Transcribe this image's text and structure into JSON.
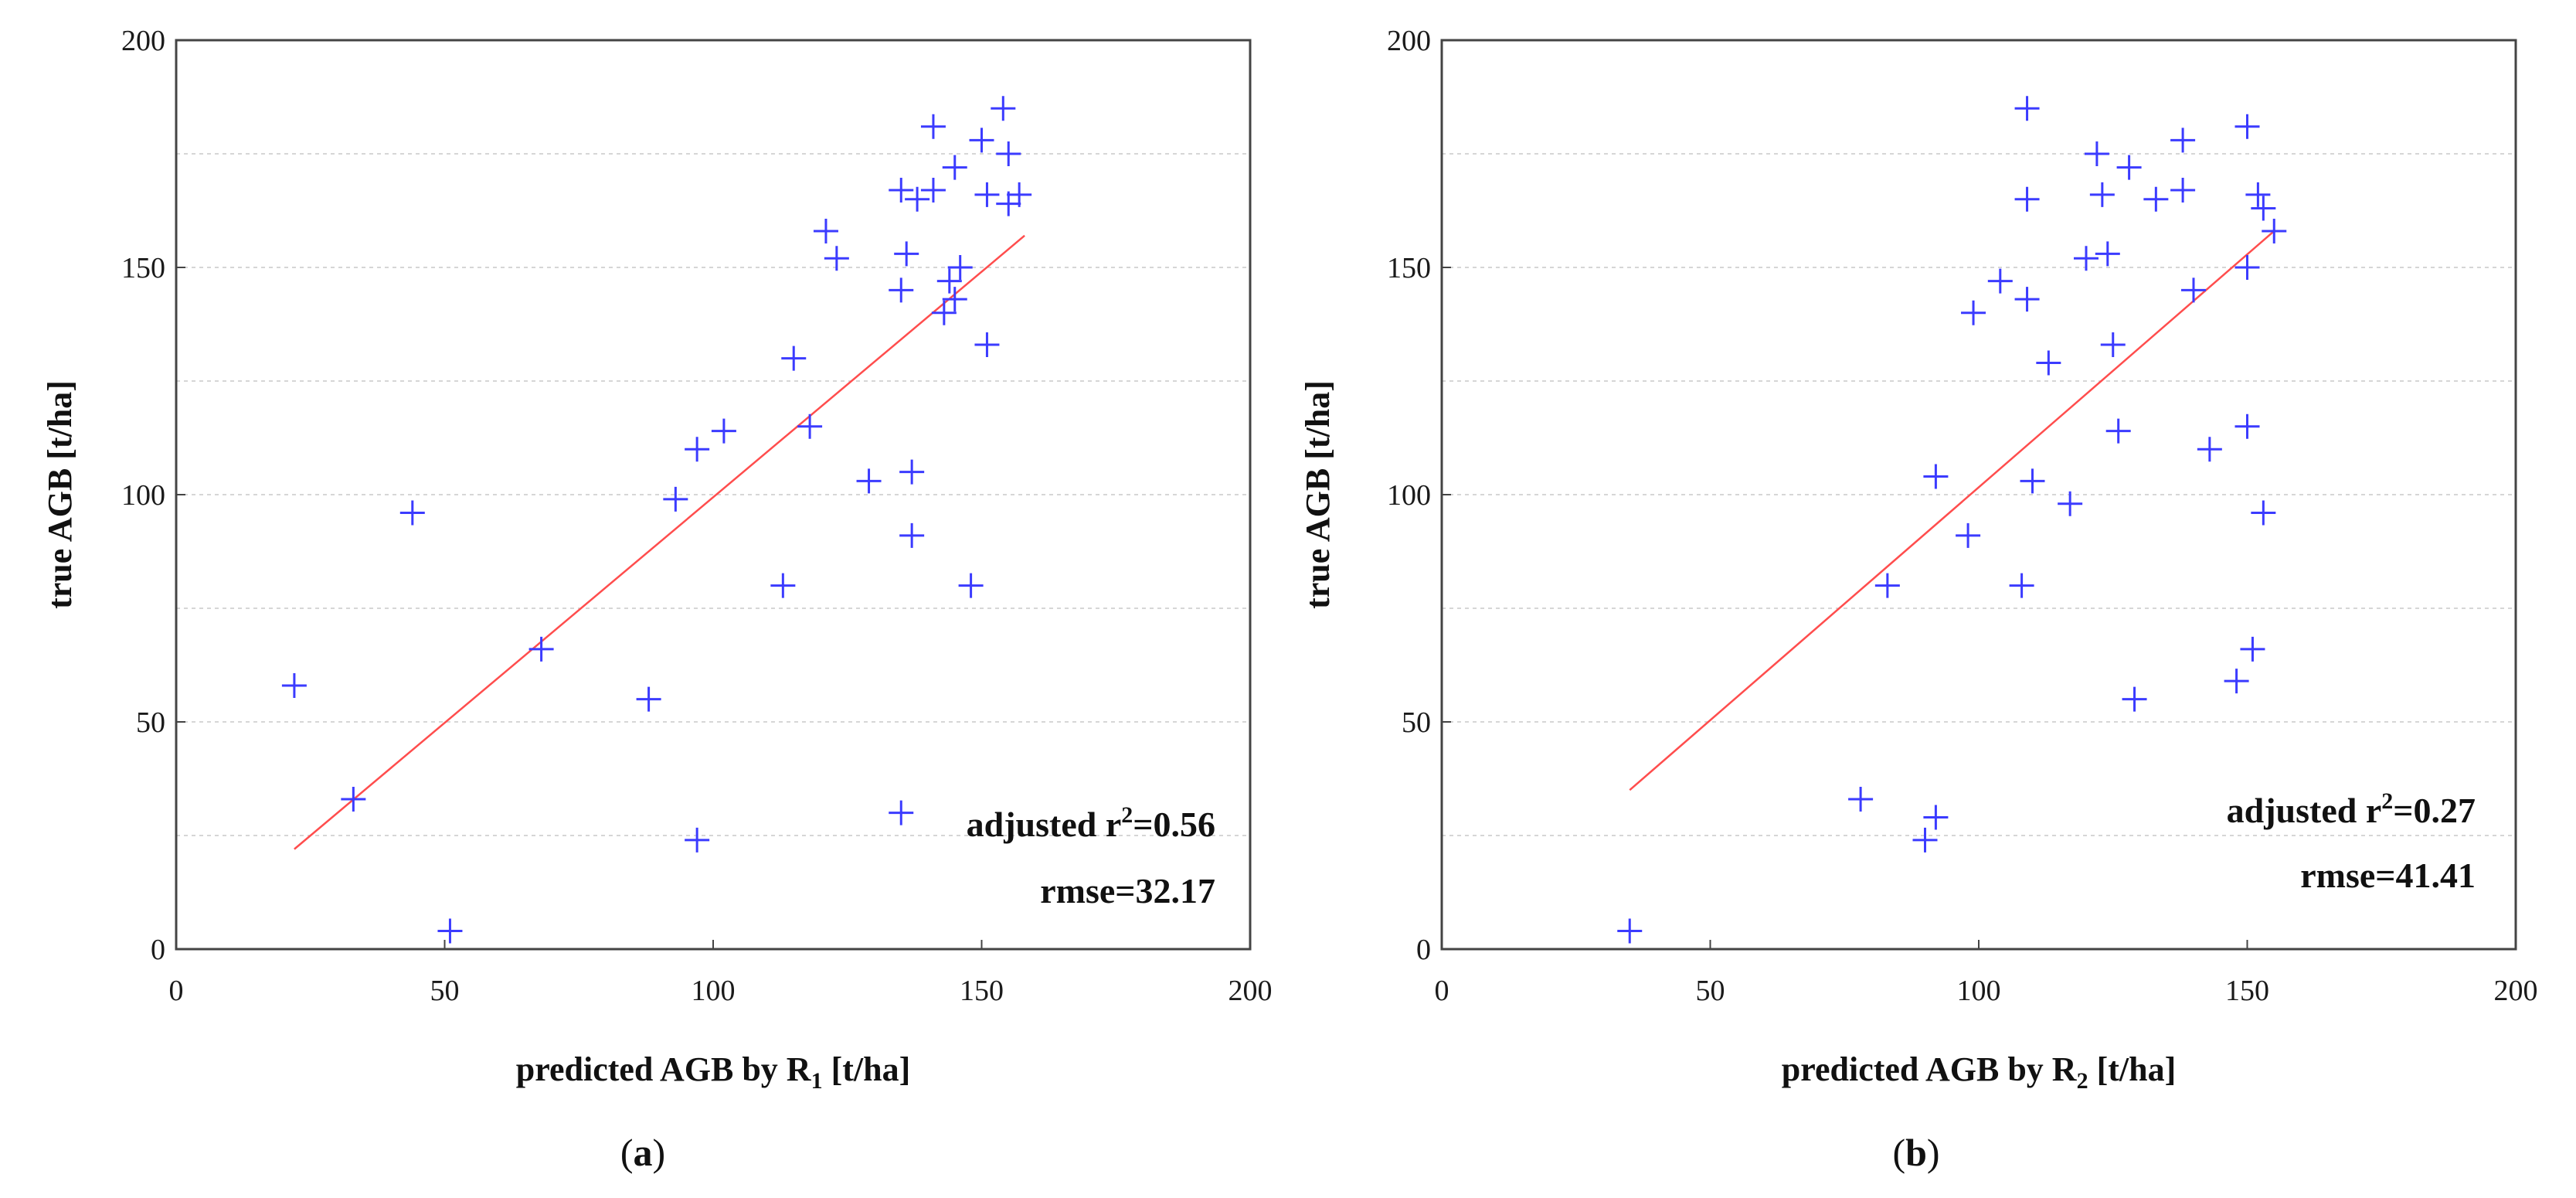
{
  "chart_data": [
    {
      "panel_label": "a",
      "type": "scatter",
      "xlabel_main": "predicted AGB by R",
      "xlabel_sub": "1",
      "xlabel_unit": " [t/ha]",
      "ylabel": "true AGB [t/ha]",
      "xlim": [
        0,
        200
      ],
      "ylim": [
        0,
        200
      ],
      "xticks": [
        0,
        50,
        100,
        150,
        200
      ],
      "yticks": [
        0,
        50,
        100,
        150,
        200
      ],
      "grid": "horizontal dashed",
      "stat_prefix": "adjusted r",
      "stat_sup": "2",
      "stat_value": "=0.56",
      "rmse": "rmse=32.17",
      "marker_color": "#3b3bff",
      "fit_color": "#ff4d4d",
      "fit_line": {
        "x": [
          22,
          158
        ],
        "y": [
          22,
          157
        ]
      },
      "points": [
        {
          "x": 22,
          "y": 58
        },
        {
          "x": 33,
          "y": 33
        },
        {
          "x": 44,
          "y": 96
        },
        {
          "x": 51,
          "y": 4
        },
        {
          "x": 68,
          "y": 66
        },
        {
          "x": 88,
          "y": 55
        },
        {
          "x": 93,
          "y": 99
        },
        {
          "x": 97,
          "y": 110
        },
        {
          "x": 97,
          "y": 24
        },
        {
          "x": 102,
          "y": 114
        },
        {
          "x": 113,
          "y": 80
        },
        {
          "x": 115,
          "y": 130
        },
        {
          "x": 118,
          "y": 115
        },
        {
          "x": 121,
          "y": 158
        },
        {
          "x": 123,
          "y": 152
        },
        {
          "x": 129,
          "y": 103
        },
        {
          "x": 135,
          "y": 167
        },
        {
          "x": 135,
          "y": 145
        },
        {
          "x": 136,
          "y": 153
        },
        {
          "x": 137,
          "y": 105
        },
        {
          "x": 137,
          "y": 91
        },
        {
          "x": 138,
          "y": 165
        },
        {
          "x": 141,
          "y": 167
        },
        {
          "x": 141,
          "y": 181
        },
        {
          "x": 143,
          "y": 140
        },
        {
          "x": 144,
          "y": 147
        },
        {
          "x": 145,
          "y": 172
        },
        {
          "x": 145,
          "y": 143
        },
        {
          "x": 146,
          "y": 150
        },
        {
          "x": 148,
          "y": 80
        },
        {
          "x": 150,
          "y": 178
        },
        {
          "x": 151,
          "y": 166
        },
        {
          "x": 151,
          "y": 133
        },
        {
          "x": 154,
          "y": 185
        },
        {
          "x": 155,
          "y": 175
        },
        {
          "x": 155,
          "y": 164
        },
        {
          "x": 157,
          "y": 166
        },
        {
          "x": 135,
          "y": 30
        }
      ]
    },
    {
      "panel_label": "b",
      "type": "scatter",
      "xlabel_main": "predicted AGB by R",
      "xlabel_sub": "2",
      "xlabel_unit": " [t/ha]",
      "ylabel": "true AGB [t/ha]",
      "xlim": [
        0,
        200
      ],
      "ylim": [
        0,
        200
      ],
      "xticks": [
        0,
        50,
        100,
        150,
        200
      ],
      "yticks": [
        0,
        50,
        100,
        150,
        200
      ],
      "grid": "horizontal dashed",
      "stat_prefix": "adjusted r",
      "stat_sup": "2",
      "stat_value": "=0.27",
      "rmse": "rmse=41.41",
      "marker_color": "#3b3bff",
      "fit_color": "#ff4d4d",
      "fit_line": {
        "x": [
          35,
          155
        ],
        "y": [
          35,
          158
        ]
      },
      "points": [
        {
          "x": 35,
          "y": 4
        },
        {
          "x": 78,
          "y": 33
        },
        {
          "x": 83,
          "y": 80
        },
        {
          "x": 90,
          "y": 24
        },
        {
          "x": 92,
          "y": 29
        },
        {
          "x": 92,
          "y": 104
        },
        {
          "x": 98,
          "y": 91
        },
        {
          "x": 99,
          "y": 140
        },
        {
          "x": 104,
          "y": 147
        },
        {
          "x": 108,
          "y": 80
        },
        {
          "x": 109,
          "y": 185
        },
        {
          "x": 109,
          "y": 165
        },
        {
          "x": 109,
          "y": 143
        },
        {
          "x": 110,
          "y": 103
        },
        {
          "x": 113,
          "y": 129
        },
        {
          "x": 117,
          "y": 98
        },
        {
          "x": 120,
          "y": 152
        },
        {
          "x": 122,
          "y": 175
        },
        {
          "x": 123,
          "y": 166
        },
        {
          "x": 124,
          "y": 153
        },
        {
          "x": 125,
          "y": 133
        },
        {
          "x": 126,
          "y": 114
        },
        {
          "x": 128,
          "y": 172
        },
        {
          "x": 129,
          "y": 55
        },
        {
          "x": 133,
          "y": 165
        },
        {
          "x": 138,
          "y": 178
        },
        {
          "x": 138,
          "y": 167
        },
        {
          "x": 140,
          "y": 145
        },
        {
          "x": 143,
          "y": 110
        },
        {
          "x": 148,
          "y": 59
        },
        {
          "x": 150,
          "y": 181
        },
        {
          "x": 150,
          "y": 150
        },
        {
          "x": 150,
          "y": 115
        },
        {
          "x": 151,
          "y": 66
        },
        {
          "x": 152,
          "y": 166
        },
        {
          "x": 153,
          "y": 163
        },
        {
          "x": 153,
          "y": 96
        },
        {
          "x": 155,
          "y": 158
        }
      ]
    }
  ]
}
